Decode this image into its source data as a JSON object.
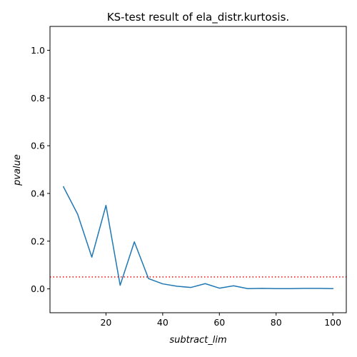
{
  "chart_data": {
    "type": "line",
    "title": "KS-test result of ela_distr.kurtosis.",
    "xlabel": "subtract_lim",
    "ylabel": "pvalue",
    "xlim": [
      0.25,
      104.75
    ],
    "ylim": [
      -0.1,
      1.1
    ],
    "xticks": [
      20,
      40,
      60,
      80,
      100
    ],
    "yticks": [
      0.0,
      0.2,
      0.4,
      0.6,
      0.8,
      1.0
    ],
    "xtick_labels": [
      "20",
      "40",
      "60",
      "80",
      "100"
    ],
    "ytick_labels": [
      "0.0",
      "0.2",
      "0.4",
      "0.6",
      "0.8",
      "1.0"
    ],
    "grid": false,
    "legend": "none",
    "series": [
      {
        "x": [
          5,
          10,
          15,
          20,
          25,
          30,
          35,
          40,
          45,
          50,
          55,
          60,
          65,
          70,
          75,
          80,
          85,
          90,
          95,
          100
        ],
        "y": [
          0.428,
          0.313,
          0.133,
          0.35,
          0.015,
          0.197,
          0.043,
          0.021,
          0.011,
          0.006,
          0.022,
          0.003,
          0.013,
          0.001,
          0.002,
          0.001,
          0.001,
          0.002,
          0.002,
          0.001
        ],
        "color": "#1f77b4",
        "style": "solid"
      }
    ],
    "reference_lines": [
      {
        "y": 0.05,
        "color": "#ff0000",
        "style": "dotted"
      }
    ]
  }
}
